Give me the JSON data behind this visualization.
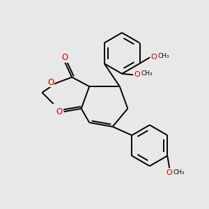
{
  "bg_color": "#e8e8e8",
  "bond_color": "#000000",
  "heteroatom_color": "#cc0000",
  "line_width": 1.4,
  "figsize": [
    3.0,
    3.0
  ],
  "dpi": 100,
  "xlim": [
    0,
    10
  ],
  "ylim": [
    0,
    10
  ]
}
